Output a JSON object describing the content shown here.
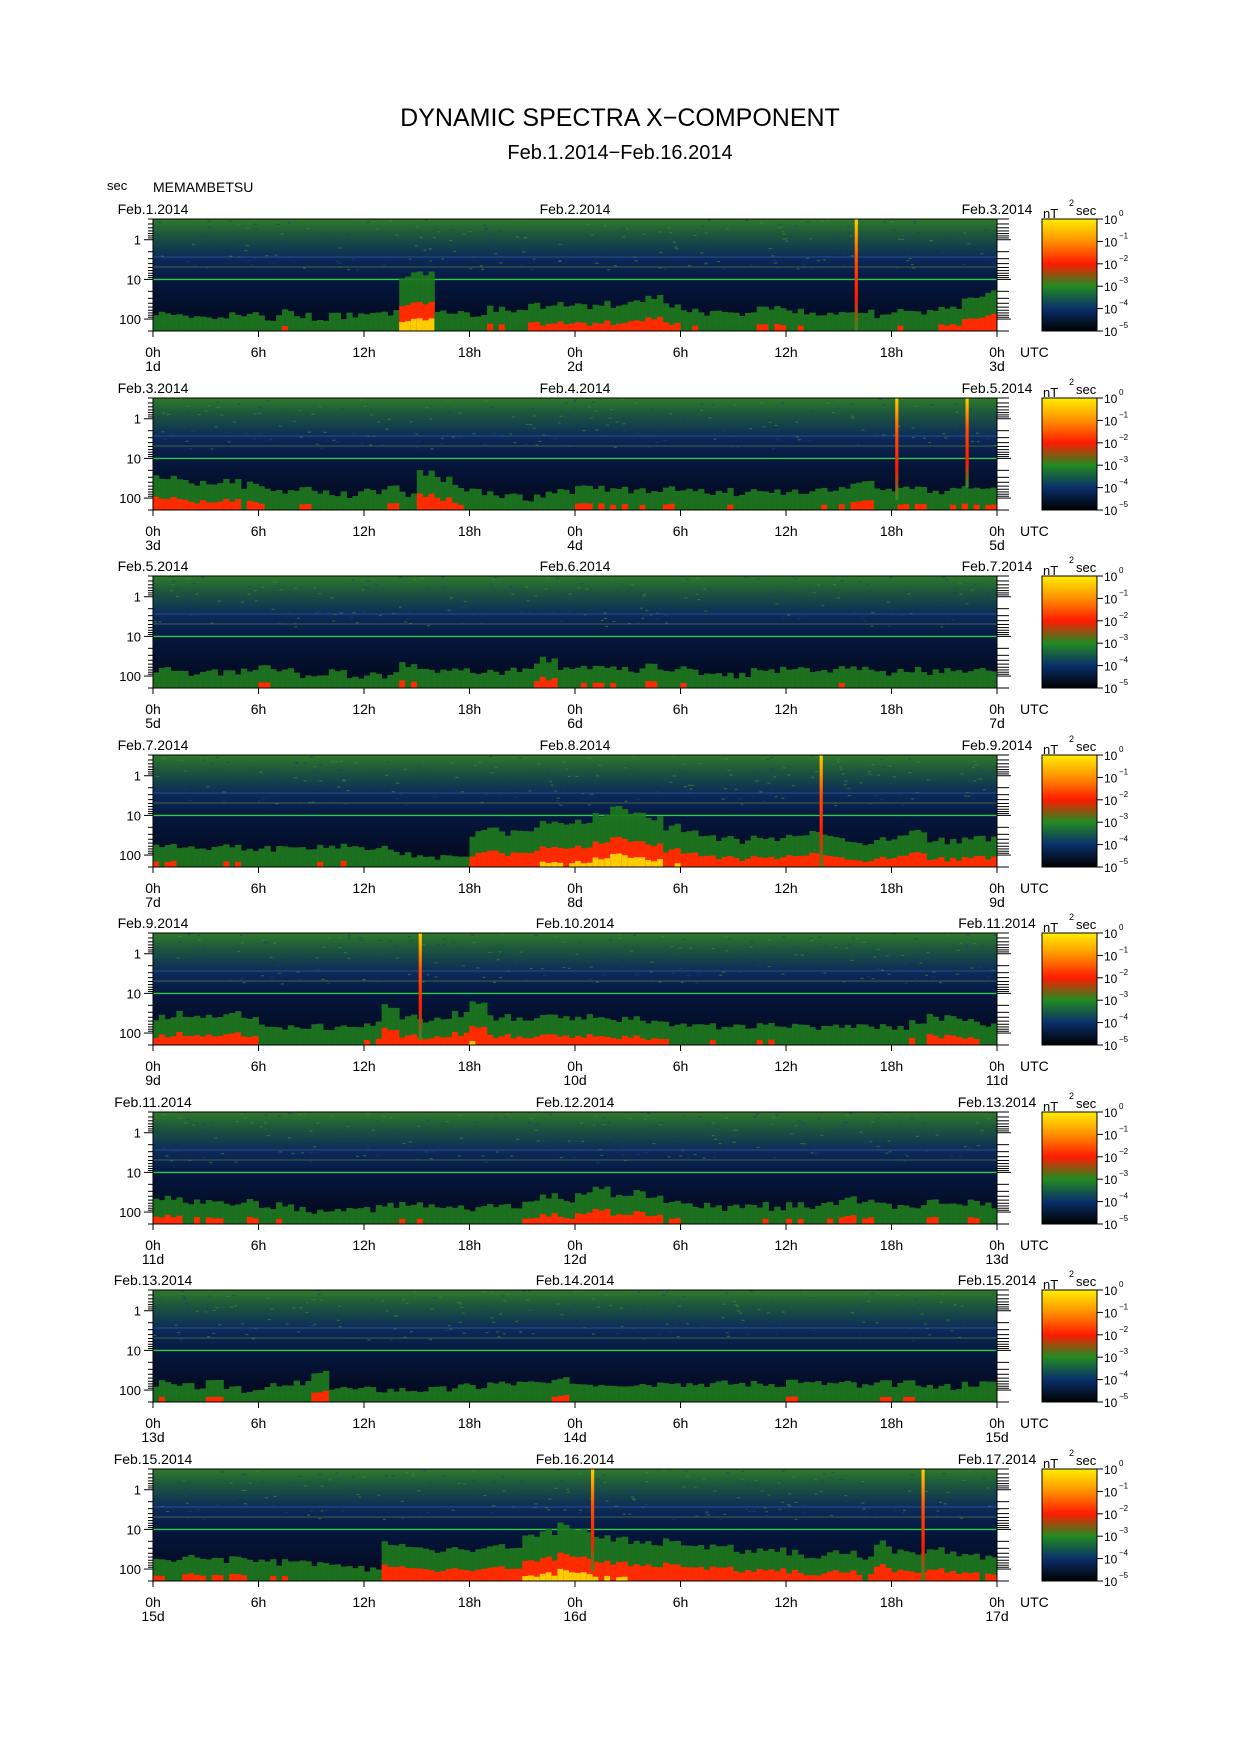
{
  "title": "DYNAMIC SPECTRA X−COMPONENT",
  "subtitle": "Feb.1.2014−Feb.16.2014",
  "station": "MEMAMBETSU",
  "y_unit": "sec",
  "time_zone_label": "UTC",
  "colorbar": {
    "unit_base": "nT",
    "unit_exp": "2",
    "unit_suffix": "sec",
    "tick_base": "10",
    "tick_exps": [
      "0",
      "−1",
      "−2",
      "−3",
      "−4",
      "−5"
    ],
    "colors": [
      "#ffee00",
      "#ff9000",
      "#ff1a00",
      "#228b22",
      "#0a2f6b",
      "#000000"
    ]
  },
  "y_ticks": [
    "1",
    "10",
    "100"
  ],
  "x_tick_labels": [
    "0h",
    "6h",
    "12h",
    "18h",
    "0h",
    "6h",
    "12h",
    "18h",
    "0h"
  ],
  "chart_data": {
    "type": "heatmap",
    "title": "DYNAMIC SPECTRA X−COMPONENT",
    "subtitle": "Feb.1.2014−Feb.16.2014",
    "ylabel": "sec",
    "yscale": "log",
    "ylim": [
      0.3,
      200
    ],
    "color_scale": "log",
    "color_range": [
      1e-05,
      1
    ],
    "panels": [
      {
        "left_date": "Feb.1.2014",
        "mid_date": "Feb.2.2014",
        "right_date": "Feb.3.2014",
        "day_labels": [
          "1d",
          "2d",
          "3d"
        ],
        "activity": [
          0.3,
          0.25,
          0.2,
          0.2,
          0.25,
          0.25,
          0.2,
          0.3,
          0.25,
          0.2,
          0.25,
          0.25,
          0.25,
          0.3,
          0.9,
          0.95,
          0.3,
          0.3,
          0.25,
          0.35,
          0.3,
          0.4,
          0.4,
          0.45,
          0.4,
          0.45,
          0.4,
          0.5,
          0.55,
          0.4,
          0.35,
          0.3,
          0.3,
          0.3,
          0.35,
          0.4,
          0.3,
          0.25,
          0.3,
          0.3,
          0.3,
          0.25,
          0.35,
          0.3,
          0.35,
          0.35,
          0.5,
          0.6
        ],
        "spikes": [
          {
            "hour": 40.0,
            "strength": 1.0
          }
        ]
      },
      {
        "left_date": "Feb.3.2014",
        "mid_date": "Feb.4.2014",
        "right_date": "Feb.5.2014",
        "day_labels": [
          "3d",
          "4d",
          "5d"
        ],
        "activity": [
          0.55,
          0.5,
          0.45,
          0.45,
          0.45,
          0.4,
          0.35,
          0.3,
          0.35,
          0.3,
          0.25,
          0.25,
          0.3,
          0.35,
          0.25,
          0.6,
          0.5,
          0.35,
          0.3,
          0.25,
          0.25,
          0.2,
          0.25,
          0.3,
          0.35,
          0.35,
          0.4,
          0.3,
          0.3,
          0.35,
          0.3,
          0.3,
          0.3,
          0.25,
          0.35,
          0.3,
          0.3,
          0.3,
          0.3,
          0.4,
          0.45,
          0.3,
          0.35,
          0.35,
          0.3,
          0.35,
          0.4,
          0.35
        ],
        "spikes": [
          {
            "hour": 42.3,
            "strength": 0.8
          },
          {
            "hour": 46.3,
            "strength": 0.55
          }
        ]
      },
      {
        "left_date": "Feb.5.2014",
        "mid_date": "Feb.6.2014",
        "right_date": "Feb.7.2014",
        "day_labels": [
          "5d",
          "6d",
          "7d"
        ],
        "activity": [
          0.3,
          0.3,
          0.25,
          0.25,
          0.25,
          0.3,
          0.35,
          0.3,
          0.2,
          0.25,
          0.25,
          0.2,
          0.25,
          0.2,
          0.4,
          0.35,
          0.3,
          0.3,
          0.25,
          0.25,
          0.3,
          0.35,
          0.45,
          0.35,
          0.3,
          0.35,
          0.3,
          0.3,
          0.35,
          0.3,
          0.3,
          0.25,
          0.25,
          0.2,
          0.3,
          0.3,
          0.35,
          0.3,
          0.25,
          0.3,
          0.3,
          0.25,
          0.3,
          0.3,
          0.25,
          0.3,
          0.3,
          0.3
        ],
        "spikes": []
      },
      {
        "left_date": "Feb.7.2014",
        "mid_date": "Feb.8.2014",
        "right_date": "Feb.9.2014",
        "day_labels": [
          "7d",
          "8d",
          "9d"
        ],
        "activity": [
          0.35,
          0.35,
          0.3,
          0.3,
          0.35,
          0.3,
          0.3,
          0.3,
          0.3,
          0.3,
          0.35,
          0.35,
          0.3,
          0.3,
          0.2,
          0.2,
          0.15,
          0.2,
          0.55,
          0.6,
          0.55,
          0.6,
          0.7,
          0.75,
          0.75,
          0.85,
          0.95,
          0.9,
          0.8,
          0.65,
          0.6,
          0.5,
          0.45,
          0.4,
          0.45,
          0.45,
          0.5,
          0.55,
          0.5,
          0.45,
          0.4,
          0.45,
          0.5,
          0.55,
          0.45,
          0.4,
          0.45,
          0.45
        ],
        "spikes": [
          {
            "hour": 38.0,
            "strength": 1.0
          }
        ]
      },
      {
        "left_date": "Feb.9.2014",
        "mid_date": "Feb.10.2014",
        "right_date": "Feb.11.2014",
        "day_labels": [
          "9d",
          "10d",
          "11d"
        ],
        "activity": [
          0.45,
          0.5,
          0.45,
          0.45,
          0.5,
          0.4,
          0.35,
          0.3,
          0.3,
          0.3,
          0.3,
          0.3,
          0.35,
          0.65,
          0.45,
          0.4,
          0.45,
          0.5,
          0.7,
          0.45,
          0.45,
          0.4,
          0.45,
          0.45,
          0.45,
          0.4,
          0.4,
          0.45,
          0.4,
          0.35,
          0.35,
          0.3,
          0.3,
          0.3,
          0.3,
          0.3,
          0.3,
          0.3,
          0.3,
          0.3,
          0.35,
          0.3,
          0.3,
          0.4,
          0.45,
          0.45,
          0.4,
          0.35
        ],
        "spikes": [
          {
            "hour": 15.2,
            "strength": 0.9
          }
        ]
      },
      {
        "left_date": "Feb.11.2014",
        "mid_date": "Feb.12.2014",
        "right_date": "Feb.13.2014",
        "day_labels": [
          "11d",
          "12d",
          "13d"
        ],
        "activity": [
          0.4,
          0.4,
          0.35,
          0.4,
          0.35,
          0.35,
          0.3,
          0.3,
          0.25,
          0.2,
          0.2,
          0.25,
          0.25,
          0.3,
          0.3,
          0.3,
          0.25,
          0.25,
          0.25,
          0.3,
          0.3,
          0.35,
          0.45,
          0.4,
          0.5,
          0.55,
          0.45,
          0.5,
          0.4,
          0.35,
          0.3,
          0.3,
          0.25,
          0.3,
          0.3,
          0.25,
          0.3,
          0.3,
          0.35,
          0.45,
          0.35,
          0.3,
          0.3,
          0.3,
          0.35,
          0.35,
          0.35,
          0.3
        ],
        "spikes": []
      },
      {
        "left_date": "Feb.13.2014",
        "mid_date": "Feb.14.2014",
        "right_date": "Feb.15.2014",
        "day_labels": [
          "13d",
          "14d",
          "15d"
        ],
        "activity": [
          0.3,
          0.25,
          0.25,
          0.3,
          0.25,
          0.2,
          0.25,
          0.25,
          0.3,
          0.45,
          0.25,
          0.2,
          0.2,
          0.2,
          0.2,
          0.2,
          0.2,
          0.25,
          0.25,
          0.3,
          0.3,
          0.3,
          0.3,
          0.35,
          0.3,
          0.3,
          0.3,
          0.3,
          0.3,
          0.35,
          0.3,
          0.3,
          0.3,
          0.3,
          0.3,
          0.3,
          0.35,
          0.3,
          0.3,
          0.3,
          0.25,
          0.3,
          0.3,
          0.3,
          0.25,
          0.25,
          0.3,
          0.3
        ],
        "spikes": []
      },
      {
        "left_date": "Feb.15.2014",
        "mid_date": "Feb.16.2014",
        "right_date": "Feb.17.2014",
        "day_labels": [
          "15d",
          "16d",
          "17d"
        ],
        "activity": [
          0.35,
          0.35,
          0.4,
          0.35,
          0.35,
          0.35,
          0.3,
          0.3,
          0.3,
          0.3,
          0.25,
          0.2,
          0.2,
          0.6,
          0.6,
          0.55,
          0.5,
          0.5,
          0.5,
          0.55,
          0.55,
          0.7,
          0.8,
          0.9,
          0.85,
          0.75,
          0.7,
          0.65,
          0.6,
          0.65,
          0.6,
          0.55,
          0.55,
          0.5,
          0.5,
          0.5,
          0.45,
          0.4,
          0.45,
          0.45,
          0.4,
          0.6,
          0.5,
          0.45,
          0.5,
          0.45,
          0.45,
          0.4
        ],
        "spikes": [
          {
            "hour": 25.0,
            "strength": 0.8
          },
          {
            "hour": 43.8,
            "strength": 1.0
          }
        ]
      }
    ]
  }
}
